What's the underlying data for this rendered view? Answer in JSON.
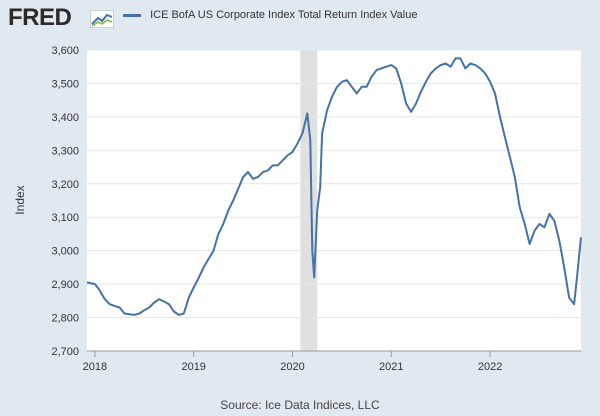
{
  "brand": {
    "logo_text": "FRED"
  },
  "source_text": "Source: Ice Data Indices, LLC",
  "chart_data": {
    "type": "line",
    "title": "",
    "ylabel": "Index",
    "xlabel": "",
    "ylim": [
      2700,
      3600
    ],
    "yticks": [
      2700,
      2800,
      2900,
      3000,
      3100,
      3200,
      3300,
      3400,
      3500,
      3600
    ],
    "ytick_labels": [
      "2,700",
      "2,800",
      "2,900",
      "3,000",
      "3,100",
      "3,200",
      "3,300",
      "3,400",
      "3,500",
      "3,600"
    ],
    "xlim": [
      2017.92,
      2022.92
    ],
    "xticks": [
      2018,
      2019,
      2020,
      2021,
      2022
    ],
    "xtick_labels": [
      "2018",
      "2019",
      "2020",
      "2021",
      "2022"
    ],
    "grid": true,
    "legend_position": "top-left",
    "recession_shading": [
      [
        2020.08,
        2020.25
      ]
    ],
    "colors": {
      "line": "#4572a7",
      "plot_bg": "#ffffff",
      "recession": "#e0e0e0",
      "grid": "#e5e5e5"
    },
    "series": [
      {
        "name": "ICE BofA US Corporate Index Total Return Index Value",
        "x": [
          2017.92,
          2018.0,
          2018.04,
          2018.1,
          2018.15,
          2018.2,
          2018.25,
          2018.3,
          2018.35,
          2018.4,
          2018.45,
          2018.5,
          2018.55,
          2018.6,
          2018.65,
          2018.7,
          2018.75,
          2018.8,
          2018.85,
          2018.9,
          2018.95,
          2019.0,
          2019.05,
          2019.1,
          2019.15,
          2019.2,
          2019.25,
          2019.3,
          2019.35,
          2019.4,
          2019.45,
          2019.5,
          2019.55,
          2019.6,
          2019.65,
          2019.7,
          2019.75,
          2019.8,
          2019.85,
          2019.9,
          2019.95,
          2020.0,
          2020.05,
          2020.1,
          2020.15,
          2020.18,
          2020.2,
          2020.22,
          2020.25,
          2020.28,
          2020.3,
          2020.35,
          2020.4,
          2020.45,
          2020.5,
          2020.55,
          2020.6,
          2020.65,
          2020.7,
          2020.75,
          2020.8,
          2020.85,
          2020.9,
          2020.95,
          2021.0,
          2021.05,
          2021.1,
          2021.15,
          2021.2,
          2021.25,
          2021.3,
          2021.35,
          2021.4,
          2021.45,
          2021.5,
          2021.55,
          2021.6,
          2021.65,
          2021.7,
          2021.75,
          2021.8,
          2021.85,
          2021.9,
          2021.95,
          2022.0,
          2022.05,
          2022.1,
          2022.15,
          2022.2,
          2022.25,
          2022.3,
          2022.35,
          2022.4,
          2022.45,
          2022.5,
          2022.55,
          2022.6,
          2022.65,
          2022.7,
          2022.75,
          2022.8,
          2022.85,
          2022.88,
          2022.92
        ],
        "y": [
          2905,
          2900,
          2885,
          2855,
          2840,
          2835,
          2830,
          2812,
          2810,
          2808,
          2812,
          2822,
          2830,
          2845,
          2855,
          2848,
          2840,
          2818,
          2808,
          2812,
          2860,
          2890,
          2918,
          2950,
          2975,
          3000,
          3050,
          3080,
          3120,
          3150,
          3185,
          3220,
          3235,
          3215,
          3220,
          3235,
          3240,
          3255,
          3255,
          3270,
          3285,
          3295,
          3320,
          3350,
          3410,
          3330,
          3000,
          2920,
          3120,
          3190,
          3350,
          3420,
          3460,
          3490,
          3505,
          3510,
          3490,
          3470,
          3490,
          3490,
          3520,
          3540,
          3545,
          3550,
          3555,
          3545,
          3500,
          3440,
          3415,
          3440,
          3475,
          3505,
          3530,
          3545,
          3555,
          3560,
          3550,
          3575,
          3575,
          3545,
          3560,
          3555,
          3545,
          3530,
          3505,
          3470,
          3400,
          3340,
          3280,
          3220,
          3130,
          3080,
          3020,
          3060,
          3080,
          3070,
          3110,
          3090,
          3030,
          2950,
          2860,
          2840,
          2920,
          3040
        ]
      }
    ]
  }
}
